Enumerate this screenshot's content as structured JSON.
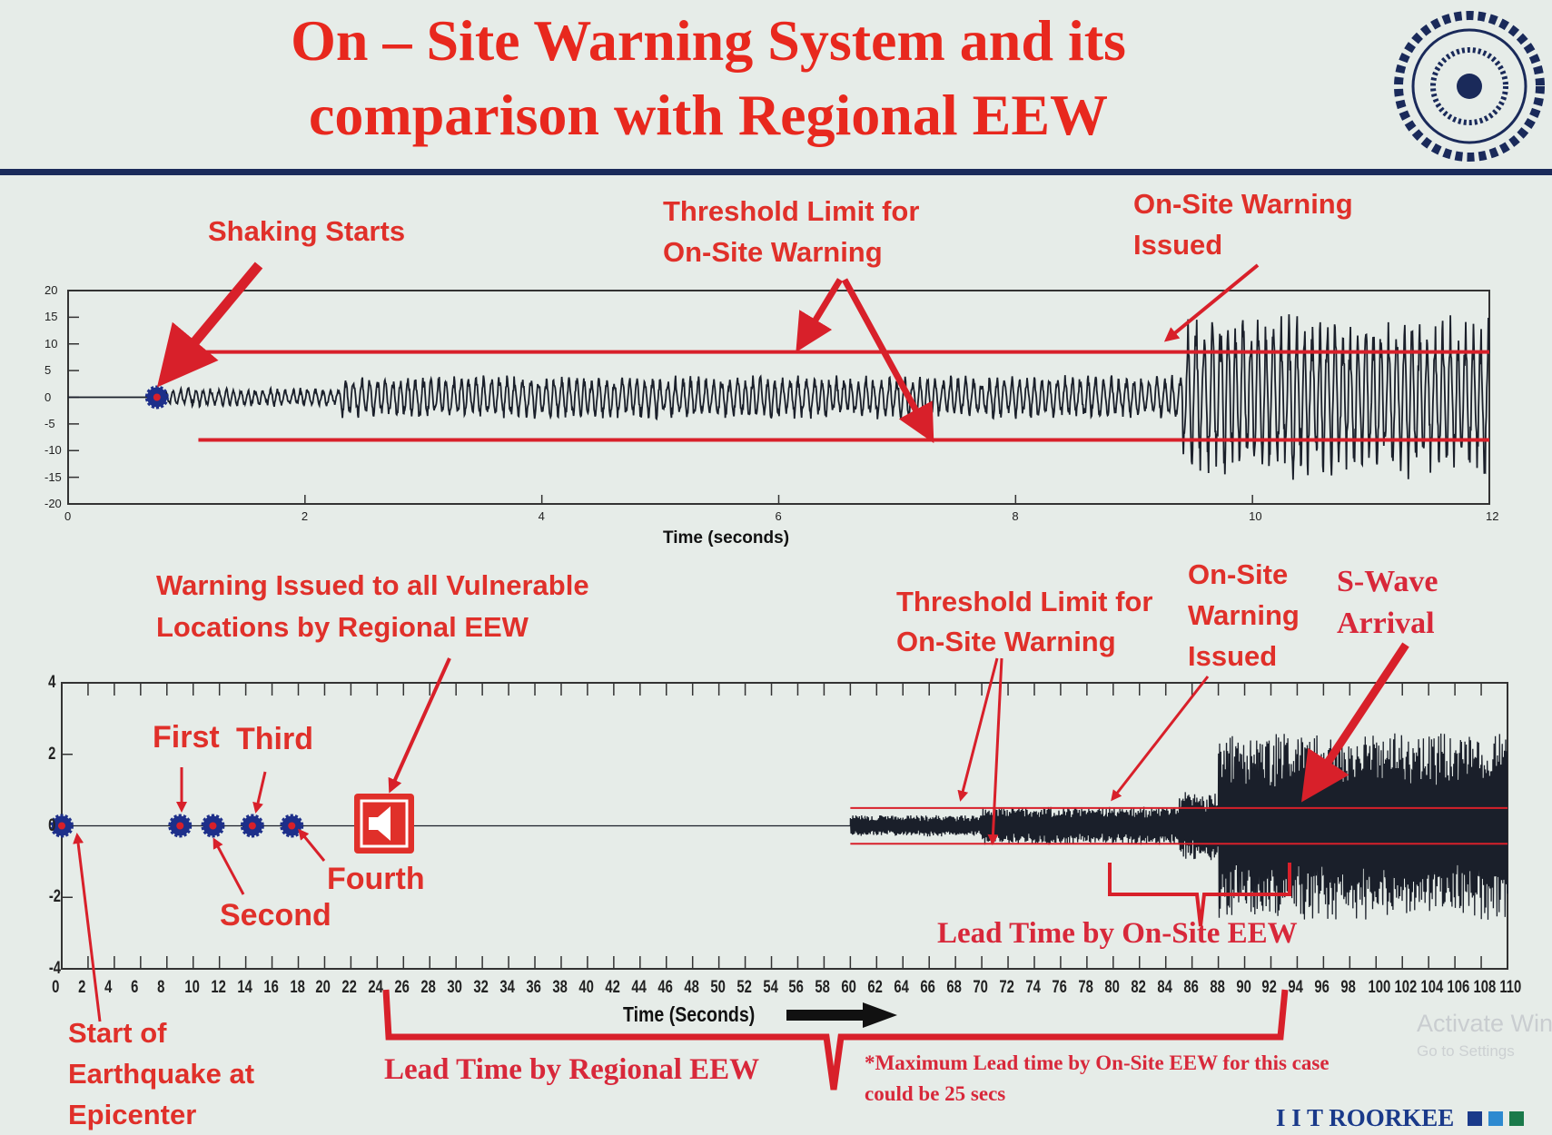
{
  "slide": {
    "title_line1": "On – Site Warning System and its",
    "title_line2": "comparison with Regional EEW",
    "logo": "IIT Roorkee seal",
    "footer_brand": "I I T ROORKEE",
    "watermark_line1": "Activate Windows",
    "watermark_line2": "Go to Settings",
    "colors": {
      "title": "#e8281e",
      "annotation": "#e0302a",
      "threshold": "#d8202a",
      "waveform": "#1a1f2a",
      "marker": "#1d2f8a",
      "rule": "#1a2a5a"
    }
  },
  "annotations_top": {
    "shaking_starts": "Shaking Starts",
    "threshold_line1": "Threshold Limit for",
    "threshold_line2": "On-Site Warning",
    "onsite_line1": "On-Site Warning",
    "onsite_line2": "Issued"
  },
  "annotations_bottom": {
    "regional_line1": "Warning Issued to all Vulnerable",
    "regional_line2": "Locations by Regional EEW",
    "first": "First",
    "second": "Second",
    "third": "Third",
    "fourth": "Fourth",
    "threshold_line1": "Threshold Limit for",
    "threshold_line2": "On-Site Warning",
    "onsite_line1": "On-Site",
    "onsite_line2": "Warning",
    "onsite_line3": "Issued",
    "swave_line1": "S-Wave",
    "swave_line2": "Arrival",
    "lead_onsite": "Lead Time by On-Site EEW",
    "lead_regional": "Lead Time by Regional EEW",
    "start_line1": "Start of",
    "start_line2": "Earthquake at",
    "start_line3": "Epicenter",
    "footnote_line1": "*Maximum Lead time by On-Site EEW for this case",
    "footnote_line2": "could be 25 secs"
  },
  "chart_data": [
    {
      "type": "line",
      "xlabel": "Time (seconds)",
      "ylabel": "",
      "xlim": [
        0,
        12
      ],
      "ylim": [
        -20,
        20
      ],
      "xticks": [
        0,
        2,
        4,
        6,
        8,
        10,
        12
      ],
      "yticks": [
        20,
        15,
        10,
        5,
        0,
        -5,
        -10,
        -15,
        -20
      ],
      "grid": false,
      "thresholds": [
        8.5,
        -8
      ],
      "threshold_start": 1.1,
      "event_marker": {
        "x": 0.75,
        "y": 0,
        "label": "Shaking Starts"
      },
      "warning_time": 9.4
    },
    {
      "type": "line",
      "xlabel": "Time (Seconds)",
      "ylabel": "",
      "xlim": [
        0,
        110
      ],
      "ylim": [
        -4,
        4
      ],
      "xticks": [
        0,
        2,
        4,
        6,
        8,
        10,
        12,
        14,
        16,
        18,
        20,
        22,
        24,
        26,
        28,
        30,
        32,
        34,
        36,
        38,
        40,
        42,
        44,
        46,
        48,
        50,
        52,
        54,
        56,
        58,
        60,
        62,
        64,
        66,
        68,
        70,
        72,
        74,
        76,
        78,
        80,
        82,
        84,
        86,
        88,
        90,
        92,
        94,
        96,
        98,
        100,
        102,
        104,
        106,
        108,
        110
      ],
      "yticks": [
        4,
        2,
        0,
        -2,
        -4
      ],
      "grid": false,
      "thresholds": [
        0.5,
        -0.5
      ],
      "threshold_start": 60,
      "station_markers": [
        {
          "x": 0,
          "label": "Start of Earthquake at Epicenter"
        },
        {
          "x": 9,
          "label": "First"
        },
        {
          "x": 11.5,
          "label": "Second"
        },
        {
          "x": 14.5,
          "label": "Third"
        },
        {
          "x": 17.5,
          "label": "Fourth"
        }
      ],
      "regional_warning_time": 24,
      "onsite_warning_time": 80,
      "s_wave_arrival": 94,
      "regional_lead_time_range": [
        24,
        93
      ],
      "onsite_lead_time_range": [
        80,
        94
      ]
    }
  ]
}
